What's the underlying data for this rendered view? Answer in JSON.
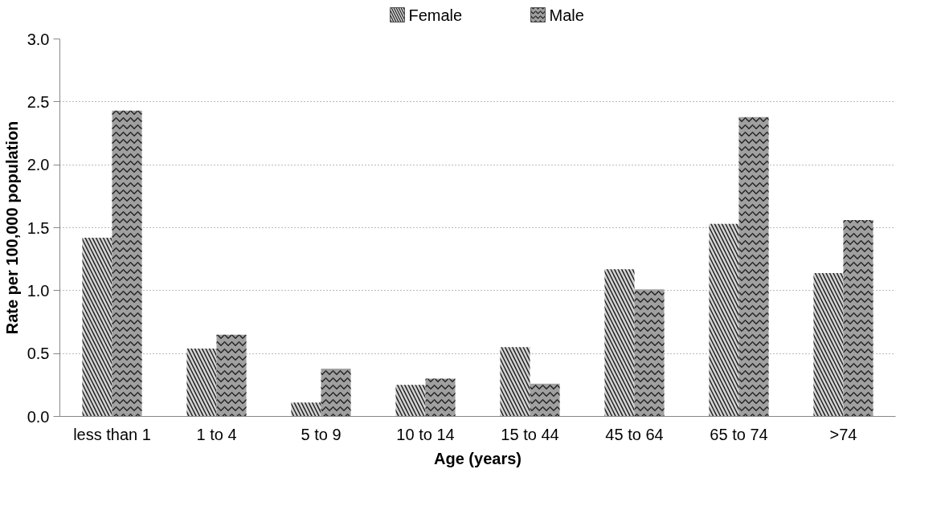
{
  "chart_data": {
    "type": "bar",
    "xlabel": "Age (years)",
    "ylabel": "Rate per 100,000 population",
    "categories": [
      "less than 1",
      "1 to 4",
      "5 to 9",
      "10 to 14",
      "15 to 44",
      "45 to 64",
      "65 to 74",
      ">74"
    ],
    "series": [
      {
        "name": "Female",
        "color": "#d4d4d4",
        "values": [
          1.42,
          0.54,
          0.11,
          0.25,
          0.55,
          1.17,
          1.53,
          1.14
        ]
      },
      {
        "name": "Male",
        "color": "#a0a0a0",
        "values": [
          2.43,
          0.65,
          0.38,
          0.3,
          0.26,
          1.01,
          2.38,
          1.56
        ]
      }
    ],
    "ylim": [
      0,
      3
    ],
    "yticks": [
      {
        "value": 0,
        "label": "0.0"
      },
      {
        "value": 0.5,
        "label": "0.5"
      },
      {
        "value": 1,
        "label": "1.0"
      },
      {
        "value": 1.5,
        "label": "1.5"
      },
      {
        "value": 2,
        "label": "2.0"
      },
      {
        "value": 2.5,
        "label": "2.5"
      },
      {
        "value": 3,
        "label": "3.0"
      }
    ],
    "grid": "y",
    "legend": "top"
  }
}
